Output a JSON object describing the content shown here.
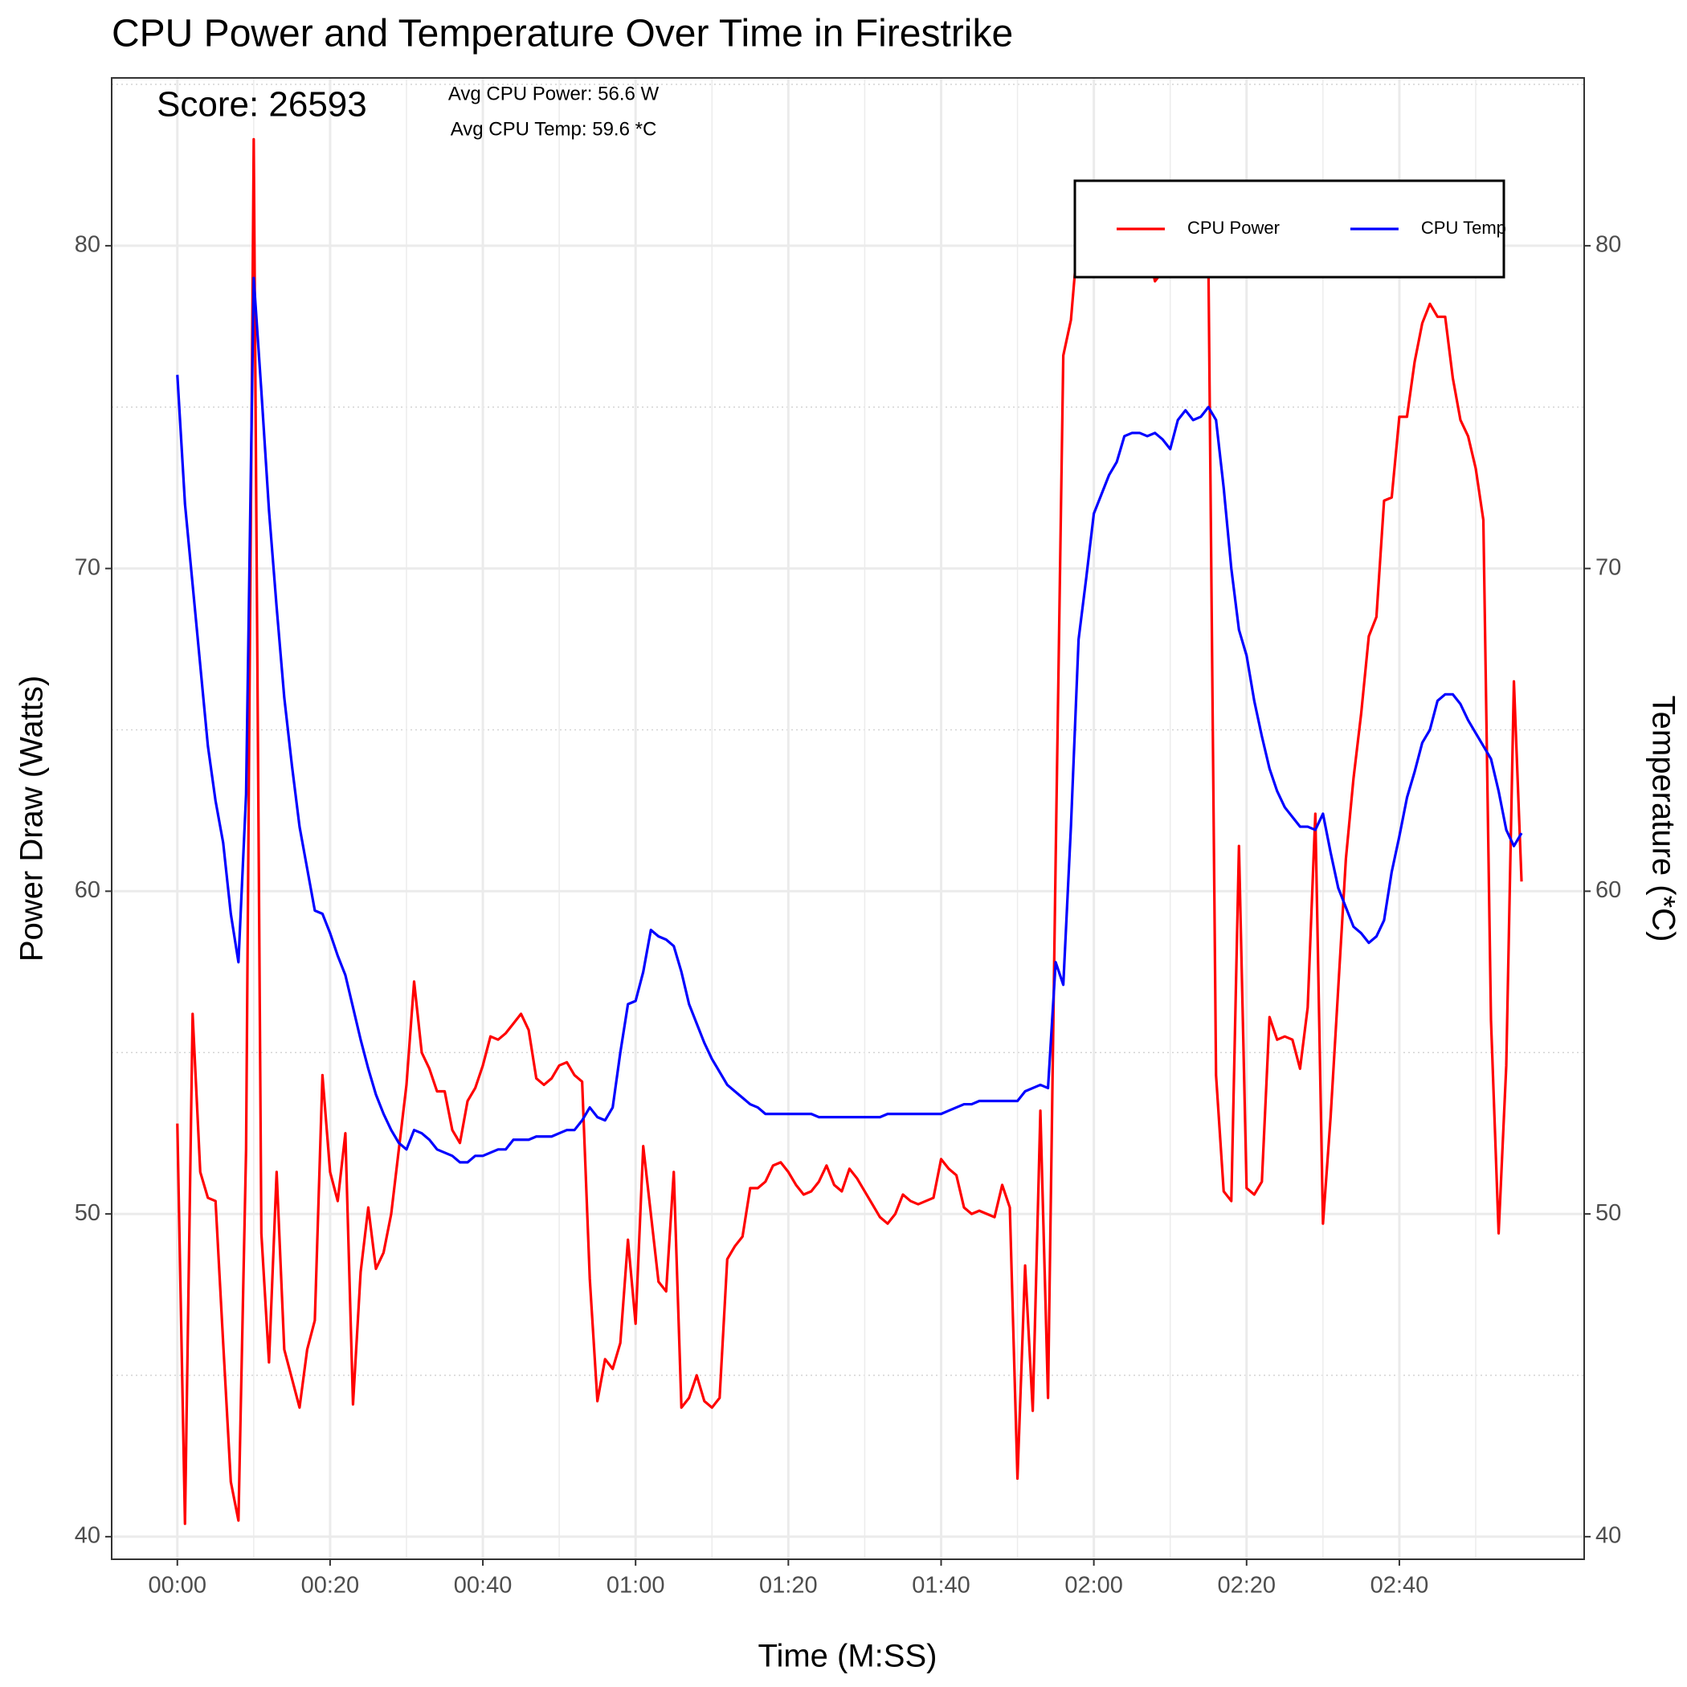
{
  "chart_data": {
    "type": "line",
    "title": "CPU Power and Temperature Over Time in Firestrike",
    "annotations": [
      "Score: 26593",
      "Avg CPU Power: 56.6 W",
      "Avg CPU Temp: 59.6 *C"
    ],
    "xlabel": "Time (M:SS)",
    "ylabel": "Power Draw (Watts)",
    "y2label": "Temperature (*C)",
    "x": [
      0,
      1,
      2,
      3,
      4,
      5,
      6,
      7,
      8,
      9,
      10,
      11,
      12,
      13,
      14,
      15,
      16,
      17,
      18,
      19,
      20,
      21,
      22,
      23,
      24,
      25,
      26,
      27,
      28,
      29,
      30,
      31,
      32,
      33,
      34,
      35,
      36,
      37,
      38,
      39,
      40,
      41,
      42,
      43,
      44,
      45,
      46,
      47,
      48,
      49,
      50,
      51,
      52,
      53,
      54,
      55,
      56,
      57,
      58,
      59,
      60,
      61,
      62,
      63,
      64,
      65,
      66,
      67,
      68,
      69,
      70,
      71,
      72,
      73,
      74,
      75,
      76,
      77,
      78,
      79,
      80,
      81,
      82,
      83,
      84,
      85,
      86,
      87,
      88,
      89,
      90,
      91,
      92,
      93,
      94,
      95,
      96,
      97,
      98,
      99,
      100,
      101,
      102,
      103,
      104,
      105,
      106,
      107,
      108,
      109,
      110,
      111,
      112,
      113,
      114,
      115,
      116,
      117,
      118,
      119,
      120,
      121,
      122,
      123,
      124,
      125,
      126,
      127,
      128,
      129,
      130,
      131,
      132,
      133,
      134,
      135,
      136,
      137,
      138,
      139,
      140,
      141,
      142,
      143,
      144,
      145,
      146,
      147,
      148,
      149,
      150,
      151,
      152,
      153,
      154,
      155,
      156,
      157,
      158,
      159,
      160,
      161,
      162,
      163,
      164,
      165,
      166,
      167,
      168,
      169,
      170,
      171,
      172,
      173,
      174,
      175,
      176
    ],
    "series": [
      {
        "name": "CPU Power",
        "color": "#ff0000",
        "axis": "y",
        "values": [
          52.8,
          40.4,
          56.2,
          51.3,
          50.5,
          50.4,
          46.0,
          41.7,
          40.5,
          52.0,
          83.3,
          49.4,
          45.4,
          51.3,
          45.8,
          44.9,
          44.0,
          45.8,
          46.7,
          54.3,
          51.3,
          50.4,
          52.5,
          44.1,
          48.2,
          50.2,
          48.3,
          48.8,
          50.0,
          52.0,
          54.0,
          57.2,
          55.0,
          54.5,
          53.8,
          53.8,
          52.6,
          52.2,
          53.5,
          53.9,
          54.6,
          55.5,
          55.4,
          55.6,
          55.9,
          56.2,
          55.7,
          54.2,
          54.0,
          54.2,
          54.6,
          54.7,
          54.3,
          54.1,
          48.0,
          44.2,
          45.5,
          45.2,
          46.0,
          49.2,
          46.6,
          52.1,
          50.0,
          47.9,
          47.6,
          51.3,
          44.0,
          44.3,
          45.0,
          44.2,
          44.0,
          44.3,
          48.6,
          49.0,
          49.3,
          50.8,
          50.8,
          51.0,
          51.5,
          51.6,
          51.3,
          50.9,
          50.6,
          50.7,
          51.0,
          51.5,
          50.9,
          50.7,
          51.4,
          51.1,
          50.7,
          50.3,
          49.9,
          49.7,
          50.0,
          50.6,
          50.4,
          50.3,
          50.4,
          50.5,
          51.7,
          51.4,
          51.2,
          50.2,
          50.0,
          50.1,
          50.0,
          49.9,
          50.9,
          50.2,
          41.8,
          48.4,
          43.9,
          53.2,
          44.3,
          61.0,
          76.6,
          77.7,
          80.5,
          82.0,
          81.5,
          81.0,
          80.8,
          81.2,
          80.5,
          80.2,
          80.5,
          80.0,
          78.9,
          79.2,
          79.5,
          80.5,
          81.0,
          80.8,
          80.5,
          79.5,
          54.3,
          50.7,
          50.4,
          61.4,
          50.8,
          50.6,
          51.0,
          56.1,
          55.4,
          55.5,
          55.4,
          54.5,
          56.4,
          62.4,
          49.7,
          53.0,
          57.0,
          61.0,
          63.5,
          65.5,
          67.9,
          68.5,
          72.1,
          72.2,
          74.7,
          74.7,
          76.4,
          77.6,
          78.2,
          77.8,
          77.8,
          75.9,
          74.6,
          74.1,
          73.1,
          71.5,
          56.0,
          49.4,
          54.6,
          66.5,
          60.3
        ]
      },
      {
        "name": "CPU Temp",
        "color": "#0000ff",
        "axis": "y2",
        "values": [
          76.0,
          72.0,
          69.5,
          67.0,
          64.5,
          62.8,
          61.5,
          59.3,
          57.8,
          63.0,
          79.0,
          75.5,
          71.8,
          68.8,
          66.0,
          63.9,
          62.0,
          60.7,
          59.4,
          59.3,
          58.7,
          58.0,
          57.4,
          56.4,
          55.4,
          54.5,
          53.7,
          53.1,
          52.6,
          52.2,
          52.0,
          52.6,
          52.5,
          52.3,
          52.0,
          51.9,
          51.8,
          51.6,
          51.6,
          51.8,
          51.8,
          51.9,
          52.0,
          52.0,
          52.3,
          52.3,
          52.3,
          52.4,
          52.4,
          52.4,
          52.5,
          52.6,
          52.6,
          52.9,
          53.3,
          53.0,
          52.9,
          53.3,
          55.0,
          56.5,
          56.6,
          57.5,
          58.8,
          58.6,
          58.5,
          58.3,
          57.5,
          56.5,
          55.9,
          55.3,
          54.8,
          54.4,
          54.0,
          53.8,
          53.6,
          53.4,
          53.3,
          53.1,
          53.1,
          53.1,
          53.1,
          53.1,
          53.1,
          53.1,
          53.0,
          53.0,
          53.0,
          53.0,
          53.0,
          53.0,
          53.0,
          53.0,
          53.0,
          53.1,
          53.1,
          53.1,
          53.1,
          53.1,
          53.1,
          53.1,
          53.1,
          53.2,
          53.3,
          53.4,
          53.4,
          53.5,
          53.5,
          53.5,
          53.5,
          53.5,
          53.5,
          53.8,
          53.9,
          54.0,
          53.9,
          57.8,
          57.1,
          62.0,
          67.8,
          69.7,
          71.7,
          72.3,
          72.9,
          73.3,
          74.1,
          74.2,
          74.2,
          74.1,
          74.2,
          74.0,
          73.7,
          74.6,
          74.9,
          74.6,
          74.7,
          75.0,
          74.6,
          72.5,
          70.0,
          68.1,
          67.3,
          65.9,
          64.8,
          63.8,
          63.1,
          62.6,
          62.3,
          62.0,
          62.0,
          61.9,
          62.4,
          61.2,
          60.1,
          59.5,
          58.9,
          58.7,
          58.4,
          58.6,
          59.1,
          60.6,
          61.7,
          62.9,
          63.7,
          64.6,
          65.0,
          65.9,
          66.1,
          66.1,
          65.8,
          65.3,
          64.9,
          64.5,
          64.1,
          63.1,
          61.9,
          61.4,
          61.8
        ]
      }
    ],
    "xlim": [
      -8.6,
      184.2
    ],
    "xticks": [
      {
        "value": 0,
        "label": "00:00"
      },
      {
        "value": 20,
        "label": "00:20"
      },
      {
        "value": 40,
        "label": "00:40"
      },
      {
        "value": 60,
        "label": "01:00"
      },
      {
        "value": 80,
        "label": "01:20"
      },
      {
        "value": 100,
        "label": "01:40"
      },
      {
        "value": 120,
        "label": "02:00"
      },
      {
        "value": 140,
        "label": "02:20"
      },
      {
        "value": 160,
        "label": "02:40"
      }
    ],
    "xminorticks": [
      10,
      30,
      50,
      70,
      90,
      110,
      130,
      150,
      170
    ],
    "ylim": [
      39.3,
      85.2
    ],
    "yticks": [
      40,
      50,
      60,
      70,
      80
    ],
    "yminorticks": [
      45,
      55,
      65,
      75,
      85
    ],
    "y2lim": [
      39.3,
      85.2
    ],
    "y2ticks": [
      40,
      50,
      60,
      70,
      80
    ],
    "grid": true,
    "legend": "top-right"
  }
}
